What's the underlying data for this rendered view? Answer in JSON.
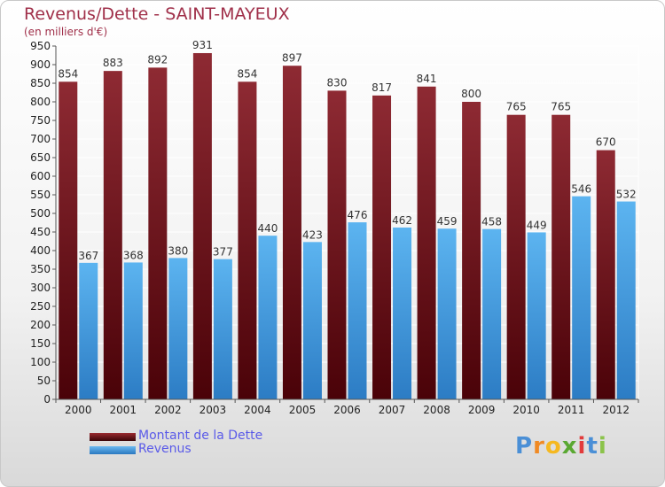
{
  "chart_data": {
    "type": "bar",
    "title": "Revenus/Dette - SAINT-MAYEUX",
    "subtitle": "(en milliers d'€)",
    "categories": [
      "2000",
      "2001",
      "2002",
      "2003",
      "2004",
      "2005",
      "2006",
      "2007",
      "2008",
      "2009",
      "2010",
      "2011",
      "2012"
    ],
    "series": [
      {
        "name": "Montant de la Dette",
        "color": "#7a1a22",
        "values": [
          854,
          883,
          892,
          931,
          854,
          897,
          830,
          817,
          841,
          800,
          765,
          765,
          670
        ]
      },
      {
        "name": "Revenus",
        "color": "#4ea8e8",
        "values": [
          367,
          368,
          380,
          377,
          440,
          423,
          476,
          462,
          459,
          458,
          449,
          546,
          532
        ]
      }
    ],
    "ylim": [
      0,
      950
    ],
    "yticks": [
      0,
      50,
      100,
      150,
      200,
      250,
      300,
      350,
      400,
      450,
      500,
      550,
      600,
      650,
      700,
      750,
      800,
      850,
      900,
      950
    ],
    "xlabel": "",
    "ylabel": "",
    "grid": true,
    "legend": "bottom-left"
  },
  "brand": {
    "letters": [
      "P",
      "r",
      "o",
      "x",
      "i",
      "t",
      "i"
    ],
    "colors": [
      "#4a8fd6",
      "#f08a24",
      "#f5b820",
      "#5aa832",
      "#e23b3b",
      "#4a8fd6",
      "#8bc34a"
    ]
  }
}
